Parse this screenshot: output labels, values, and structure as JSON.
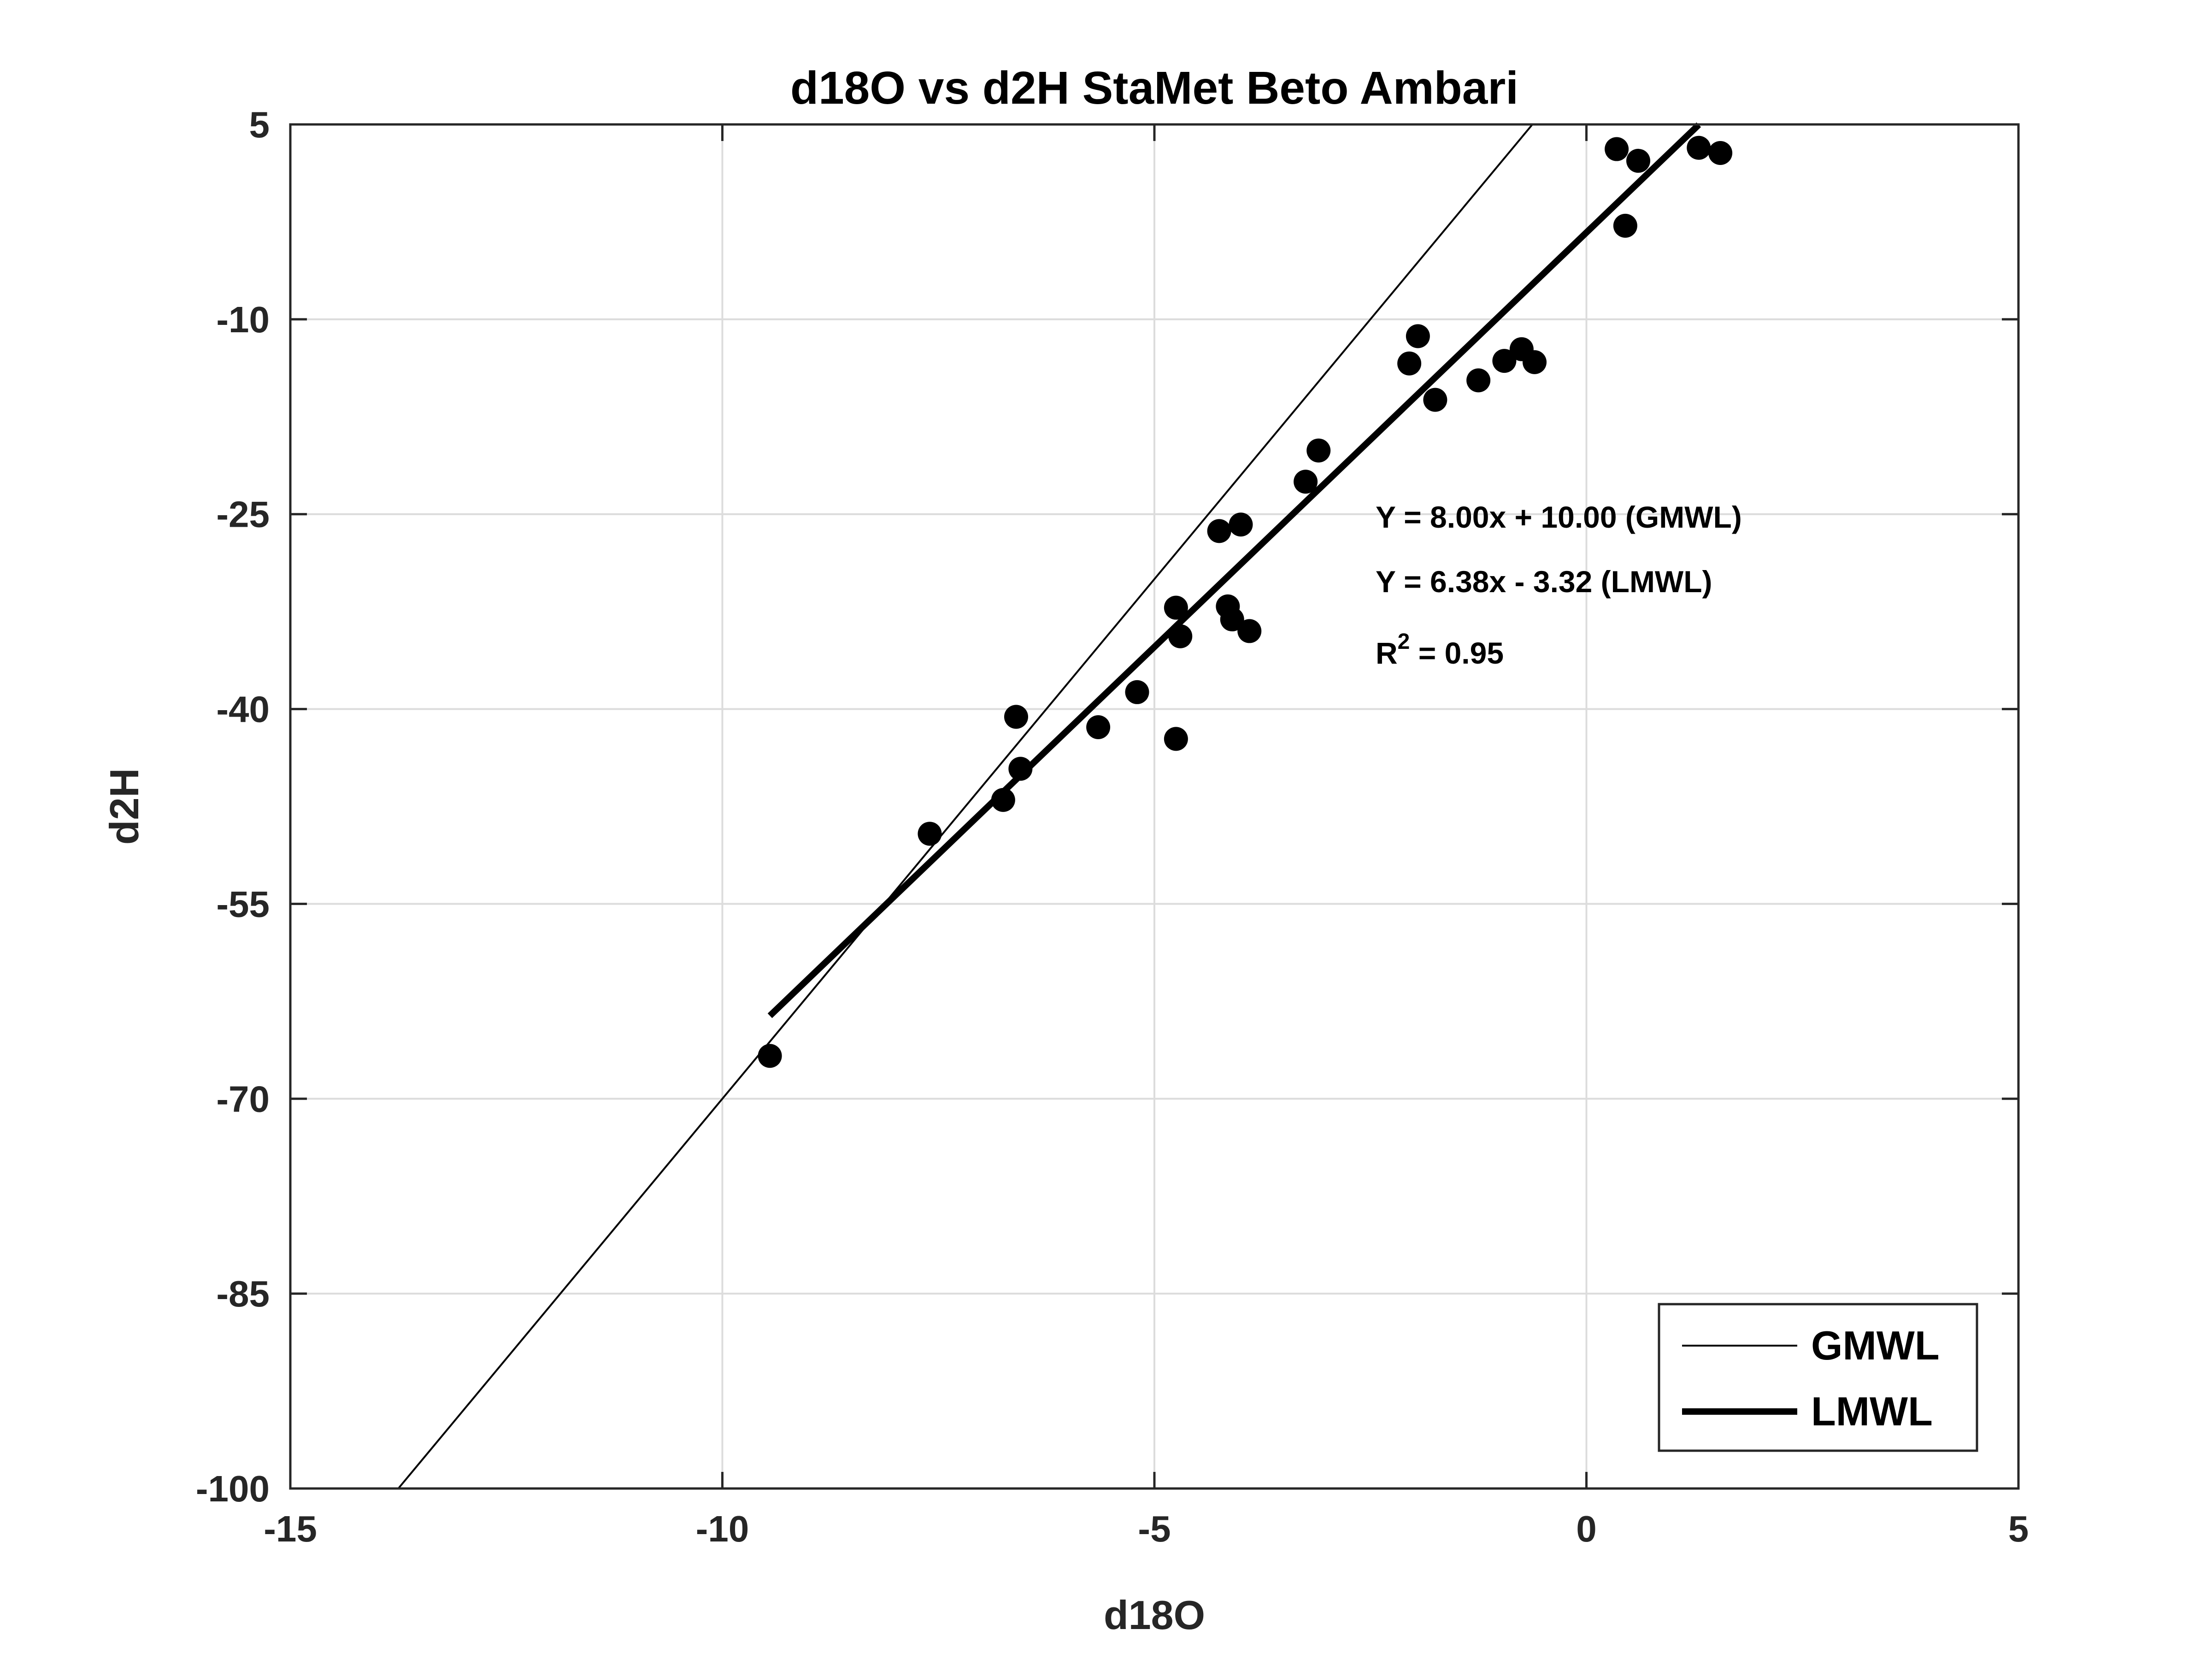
{
  "chart_data": {
    "type": "scatter",
    "title": "d18O vs d2H StaMet Beto Ambari",
    "xlabel": "d18O",
    "ylabel": "d2H",
    "xlim": [
      -15,
      5
    ],
    "ylim": [
      -100,
      5
    ],
    "xticks": [
      "-15",
      "-10",
      "-5",
      "0",
      "5"
    ],
    "yticks": [
      "5",
      "-10",
      "-25",
      "-40",
      "-55",
      "-70",
      "-85",
      "-100"
    ],
    "grid": true,
    "legend_position": "bottom-right",
    "points": [
      {
        "x": -9.45,
        "y": -66.7
      },
      {
        "x": -7.6,
        "y": -49.6
      },
      {
        "x": -6.75,
        "y": -47.0
      },
      {
        "x": -6.6,
        "y": -40.6
      },
      {
        "x": -6.55,
        "y": -44.6
      },
      {
        "x": -5.65,
        "y": -41.4
      },
      {
        "x": -5.2,
        "y": -38.7
      },
      {
        "x": -4.75,
        "y": -32.2
      },
      {
        "x": -4.75,
        "y": -42.3
      },
      {
        "x": -4.7,
        "y": -34.4
      },
      {
        "x": -4.25,
        "y": -26.3
      },
      {
        "x": -4.15,
        "y": -32.1
      },
      {
        "x": -4.1,
        "y": -33.1
      },
      {
        "x": -4.0,
        "y": -25.8
      },
      {
        "x": -3.9,
        "y": -34.0
      },
      {
        "x": -3.25,
        "y": -22.5
      },
      {
        "x": -3.1,
        "y": -20.1
      },
      {
        "x": -2.05,
        "y": -13.4
      },
      {
        "x": -1.95,
        "y": -11.3
      },
      {
        "x": -1.75,
        "y": -16.2
      },
      {
        "x": -1.25,
        "y": -14.7
      },
      {
        "x": -0.95,
        "y": -13.2
      },
      {
        "x": -0.75,
        "y": -12.3
      },
      {
        "x": -0.6,
        "y": -13.3
      },
      {
        "x": 0.35,
        "y": 3.1
      },
      {
        "x": 0.45,
        "y": -2.8
      },
      {
        "x": 0.6,
        "y": 2.2
      },
      {
        "x": 1.3,
        "y": 3.2
      },
      {
        "x": 1.55,
        "y": 2.8
      }
    ],
    "series": [
      {
        "name": "GMWL",
        "slope": 8.0,
        "intercept": 10.0,
        "x_range": [
          -13.75,
          -0.625
        ],
        "line_width": "thin"
      },
      {
        "name": "LMWL",
        "slope": 6.38,
        "intercept": -3.32,
        "x_range": [
          -9.45,
          1.3
        ],
        "line_width": "thick"
      }
    ],
    "annotations": {
      "gmwl_eq": "Y = 8.00x + 10.00 (GMWL)",
      "lmwl_eq": "Y = 6.38x - 3.32 (LMWL)",
      "r2_prefix": "R",
      "r2_sup": "2",
      "r2_value": " = 0.95"
    }
  }
}
